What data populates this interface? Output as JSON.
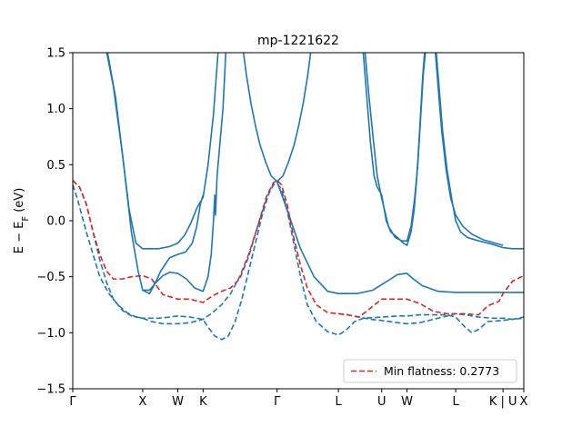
{
  "chart_data": {
    "type": "line",
    "title": "mp-1221622",
    "ylabel": "E − E_F (eV)",
    "ylim": [
      -1.5,
      1.5
    ],
    "yticks": [
      -1.5,
      -1.0,
      -0.5,
      0.0,
      0.5,
      1.0,
      1.5
    ],
    "ytick_labels": [
      "−1.5",
      "−1.0",
      "−0.5",
      "0.0",
      "0.5",
      "1.0",
      "1.5"
    ],
    "xlim": [
      0,
      1
    ],
    "kpoints": [
      {
        "label": "Γ",
        "x": 0.0
      },
      {
        "label": "X",
        "x": 0.155
      },
      {
        "label": "W",
        "x": 0.233
      },
      {
        "label": "K",
        "x": 0.289
      },
      {
        "label": "Γ",
        "x": 0.453
      },
      {
        "label": "L",
        "x": 0.589
      },
      {
        "label": "U",
        "x": 0.685
      },
      {
        "label": "W",
        "x": 0.741
      },
      {
        "label": "L",
        "x": 0.849
      },
      {
        "label": "K | U",
        "x": 0.954
      },
      {
        "label": "X",
        "x": 1.0
      }
    ],
    "legend": {
      "label": "Min flatness: 0.2773",
      "position": "lower right"
    },
    "colors": {
      "band": "#1f77b4",
      "flat": "#d62728"
    },
    "series": [
      {
        "style": "solid",
        "color": "#1f77b4",
        "points": [
          [
            0.073,
            1.55
          ],
          [
            0.09,
            1.2
          ],
          [
            0.11,
            0.6
          ],
          [
            0.125,
            0.1
          ],
          [
            0.14,
            -0.2
          ],
          [
            0.155,
            -0.25
          ],
          [
            0.19,
            -0.25
          ],
          [
            0.215,
            -0.23
          ],
          [
            0.233,
            -0.2
          ],
          [
            0.248,
            -0.13
          ],
          [
            0.262,
            -0.02
          ],
          [
            0.276,
            0.12
          ],
          [
            0.289,
            0.21
          ],
          [
            0.3,
            0.5
          ],
          [
            0.312,
            0.95
          ],
          [
            0.323,
            1.55
          ]
        ]
      },
      {
        "style": "solid",
        "color": "#1f77b4",
        "points": [
          [
            0.075,
            1.55
          ],
          [
            0.095,
            1.1
          ],
          [
            0.113,
            0.5
          ],
          [
            0.13,
            -0.1
          ],
          [
            0.145,
            -0.45
          ],
          [
            0.155,
            -0.62
          ],
          [
            0.17,
            -0.62
          ],
          [
            0.185,
            -0.55
          ],
          [
            0.2,
            -0.49
          ],
          [
            0.215,
            -0.46
          ],
          [
            0.233,
            -0.47
          ],
          [
            0.252,
            -0.52
          ],
          [
            0.27,
            -0.6
          ],
          [
            0.289,
            -0.63
          ],
          [
            0.3,
            -0.5
          ],
          [
            0.307,
            -0.3
          ],
          [
            0.312,
            0.0
          ],
          [
            0.315,
            0.23
          ],
          [
            0.3165,
            0.05
          ],
          [
            0.32,
            0.4
          ],
          [
            0.333,
            1.0
          ],
          [
            0.34,
            1.55
          ]
        ]
      },
      {
        "style": "solid",
        "color": "#1f77b4",
        "points": [
          [
            0.155,
            -0.62
          ],
          [
            0.17,
            -0.65
          ],
          [
            0.18,
            -0.58
          ],
          [
            0.195,
            -0.45
          ],
          [
            0.215,
            -0.33
          ],
          [
            0.233,
            -0.3
          ],
          [
            0.25,
            -0.28
          ],
          [
            0.265,
            -0.2
          ],
          [
            0.275,
            -0.05
          ],
          [
            0.283,
            0.15
          ],
          [
            0.289,
            0.23
          ]
        ]
      },
      {
        "style": "solid",
        "color": "#1f77b4",
        "points": [
          [
            0.377,
            1.55
          ],
          [
            0.385,
            1.3
          ],
          [
            0.395,
            1.05
          ],
          [
            0.405,
            0.85
          ],
          [
            0.415,
            0.68
          ],
          [
            0.428,
            0.52
          ],
          [
            0.44,
            0.4
          ],
          [
            0.453,
            0.35
          ],
          [
            0.466,
            0.4
          ],
          [
            0.478,
            0.52
          ],
          [
            0.491,
            0.68
          ],
          [
            0.501,
            0.85
          ],
          [
            0.511,
            1.05
          ],
          [
            0.521,
            1.3
          ],
          [
            0.529,
            1.55
          ]
        ]
      },
      {
        "style": "solid",
        "color": "#1f77b4",
        "points": [
          [
            0.453,
            0.35
          ],
          [
            0.475,
            0.1
          ],
          [
            0.505,
            -0.25
          ],
          [
            0.535,
            -0.5
          ],
          [
            0.565,
            -0.63
          ],
          [
            0.589,
            -0.65
          ],
          [
            0.63,
            -0.65
          ],
          [
            0.665,
            -0.62
          ],
          [
            0.685,
            -0.57
          ],
          [
            0.705,
            -0.52
          ],
          [
            0.72,
            -0.48
          ],
          [
            0.741,
            -0.47
          ],
          [
            0.755,
            -0.52
          ],
          [
            0.775,
            -0.58
          ],
          [
            0.81,
            -0.63
          ],
          [
            0.849,
            -0.64
          ],
          [
            0.9,
            -0.64
          ],
          [
            0.954,
            -0.64
          ],
          [
            1.0,
            -0.64
          ]
        ]
      },
      {
        "style": "solid",
        "color": "#1f77b4",
        "points": [
          [
            0.643,
            1.55
          ],
          [
            0.652,
            1.1
          ],
          [
            0.66,
            0.7
          ],
          [
            0.668,
            0.4
          ],
          [
            0.675,
            0.3
          ],
          [
            0.685,
            0.23
          ],
          [
            0.695,
            0.0
          ],
          [
            0.705,
            -0.1
          ],
          [
            0.72,
            -0.15
          ],
          [
            0.733,
            -0.2
          ],
          [
            0.741,
            -0.22
          ],
          [
            0.75,
            -0.1
          ],
          [
            0.757,
            0.1
          ],
          [
            0.763,
            0.4
          ],
          [
            0.769,
            0.8
          ],
          [
            0.776,
            1.3
          ],
          [
            0.781,
            1.55
          ]
        ]
      },
      {
        "style": "solid",
        "color": "#1f77b4",
        "points": [
          [
            0.647,
            1.55
          ],
          [
            0.657,
            1.1
          ],
          [
            0.667,
            0.7
          ],
          [
            0.675,
            0.4
          ],
          [
            0.685,
            0.2
          ],
          [
            0.7,
            -0.05
          ],
          [
            0.715,
            -0.15
          ],
          [
            0.73,
            -0.18
          ],
          [
            0.741,
            -0.18
          ],
          [
            0.75,
            -0.05
          ],
          [
            0.758,
            0.2
          ],
          [
            0.765,
            0.5
          ],
          [
            0.771,
            0.9
          ],
          [
            0.777,
            1.3
          ],
          [
            0.783,
            1.55
          ]
        ]
      },
      {
        "style": "solid",
        "color": "#1f77b4",
        "points": [
          [
            0.805,
            1.55
          ],
          [
            0.812,
            1.2
          ],
          [
            0.82,
            0.8
          ],
          [
            0.83,
            0.45
          ],
          [
            0.84,
            0.2
          ],
          [
            0.849,
            0.0
          ],
          [
            0.86,
            -0.1
          ],
          [
            0.875,
            -0.15
          ],
          [
            0.9,
            -0.18
          ],
          [
            0.93,
            -0.21
          ],
          [
            0.954,
            -0.24
          ],
          [
            0.975,
            -0.25
          ],
          [
            1.0,
            -0.25
          ]
        ]
      },
      {
        "style": "solid",
        "color": "#1f77b4",
        "points": [
          [
            0.803,
            1.55
          ],
          [
            0.81,
            1.2
          ],
          [
            0.818,
            0.8
          ],
          [
            0.828,
            0.45
          ],
          [
            0.838,
            0.2
          ],
          [
            0.849,
            0.05
          ],
          [
            0.865,
            -0.05
          ],
          [
            0.885,
            -0.12
          ],
          [
            0.91,
            -0.17
          ],
          [
            0.954,
            -0.22
          ]
        ]
      },
      {
        "style": "dashed",
        "color": "#1f77b4",
        "points": [
          [
            0.0,
            0.32
          ],
          [
            0.01,
            0.2
          ],
          [
            0.02,
            0.05
          ],
          [
            0.03,
            -0.1
          ],
          [
            0.045,
            -0.3
          ],
          [
            0.06,
            -0.5
          ],
          [
            0.08,
            -0.65
          ],
          [
            0.1,
            -0.75
          ],
          [
            0.12,
            -0.82
          ],
          [
            0.14,
            -0.86
          ],
          [
            0.155,
            -0.87
          ],
          [
            0.19,
            -0.87
          ],
          [
            0.215,
            -0.86
          ],
          [
            0.233,
            -0.85
          ],
          [
            0.26,
            -0.86
          ],
          [
            0.289,
            -0.88
          ],
          [
            0.3,
            -0.95
          ],
          [
            0.315,
            -1.03
          ],
          [
            0.33,
            -1.06
          ],
          [
            0.345,
            -1.03
          ],
          [
            0.36,
            -0.9
          ],
          [
            0.375,
            -0.7
          ],
          [
            0.39,
            -0.45
          ],
          [
            0.405,
            -0.2
          ],
          [
            0.42,
            0.05
          ],
          [
            0.435,
            0.25
          ],
          [
            0.445,
            0.32
          ],
          [
            0.453,
            0.33
          ],
          [
            0.463,
            0.28
          ],
          [
            0.475,
            0.1
          ],
          [
            0.49,
            -0.2
          ],
          [
            0.505,
            -0.5
          ],
          [
            0.52,
            -0.75
          ],
          [
            0.54,
            -0.9
          ],
          [
            0.565,
            -0.99
          ],
          [
            0.589,
            -1.02
          ],
          [
            0.605,
            -0.98
          ],
          [
            0.625,
            -0.9
          ],
          [
            0.645,
            -0.87
          ],
          [
            0.685,
            -0.86
          ],
          [
            0.72,
            -0.85
          ],
          [
            0.741,
            -0.85
          ],
          [
            0.77,
            -0.84
          ],
          [
            0.8,
            -0.84
          ],
          [
            0.83,
            -0.84
          ],
          [
            0.849,
            -0.86
          ],
          [
            0.87,
            -0.95
          ],
          [
            0.885,
            -1.0
          ],
          [
            0.9,
            -0.97
          ],
          [
            0.92,
            -0.9
          ],
          [
            0.954,
            -0.89
          ],
          [
            0.975,
            -0.88
          ],
          [
            1.0,
            -0.86
          ]
        ]
      },
      {
        "style": "dashed",
        "color": "#1f77b4",
        "points": [
          [
            0.0,
            0.36
          ],
          [
            0.015,
            0.3
          ],
          [
            0.03,
            0.15
          ],
          [
            0.045,
            -0.1
          ],
          [
            0.06,
            -0.35
          ],
          [
            0.075,
            -0.55
          ],
          [
            0.09,
            -0.7
          ],
          [
            0.11,
            -0.8
          ],
          [
            0.13,
            -0.85
          ],
          [
            0.155,
            -0.87
          ],
          [
            0.175,
            -0.9
          ],
          [
            0.2,
            -0.92
          ],
          [
            0.233,
            -0.92
          ],
          [
            0.26,
            -0.91
          ],
          [
            0.289,
            -0.88
          ],
          [
            0.31,
            -0.82
          ],
          [
            0.33,
            -0.75
          ],
          [
            0.35,
            -0.65
          ],
          [
            0.37,
            -0.5
          ],
          [
            0.39,
            -0.3
          ],
          [
            0.41,
            -0.05
          ],
          [
            0.43,
            0.2
          ],
          [
            0.445,
            0.33
          ],
          [
            0.453,
            0.35
          ]
        ]
      },
      {
        "style": "dashed",
        "color": "#1f77b4",
        "points": [
          [
            0.589,
            -0.83
          ],
          [
            0.61,
            -0.84
          ],
          [
            0.635,
            -0.86
          ],
          [
            0.66,
            -0.88
          ],
          [
            0.685,
            -0.89
          ],
          [
            0.72,
            -0.91
          ],
          [
            0.741,
            -0.92
          ],
          [
            0.77,
            -0.91
          ],
          [
            0.8,
            -0.88
          ],
          [
            0.83,
            -0.85
          ],
          [
            0.849,
            -0.83
          ],
          [
            0.87,
            -0.84
          ],
          [
            0.9,
            -0.86
          ],
          [
            0.93,
            -0.87
          ],
          [
            0.954,
            -0.87
          ],
          [
            0.975,
            -0.88
          ],
          [
            1.0,
            -0.87
          ]
        ]
      },
      {
        "style": "dashed",
        "color": "#d62728",
        "points": [
          [
            0.0,
            0.36
          ],
          [
            0.015,
            0.3
          ],
          [
            0.03,
            0.15
          ],
          [
            0.045,
            -0.1
          ],
          [
            0.06,
            -0.3
          ],
          [
            0.075,
            -0.45
          ],
          [
            0.09,
            -0.52
          ],
          [
            0.11,
            -0.52
          ],
          [
            0.13,
            -0.5
          ],
          [
            0.155,
            -0.49
          ],
          [
            0.175,
            -0.52
          ],
          [
            0.2,
            -0.66
          ],
          [
            0.233,
            -0.7
          ],
          [
            0.26,
            -0.7
          ],
          [
            0.289,
            -0.73
          ],
          [
            0.31,
            -0.67
          ],
          [
            0.33,
            -0.63
          ],
          [
            0.35,
            -0.6
          ],
          [
            0.37,
            -0.52
          ],
          [
            0.39,
            -0.32
          ],
          [
            0.41,
            -0.05
          ],
          [
            0.43,
            0.22
          ],
          [
            0.445,
            0.34
          ],
          [
            0.453,
            0.36
          ],
          [
            0.463,
            0.32
          ],
          [
            0.475,
            0.15
          ],
          [
            0.49,
            -0.15
          ],
          [
            0.505,
            -0.4
          ],
          [
            0.52,
            -0.6
          ],
          [
            0.54,
            -0.75
          ],
          [
            0.565,
            -0.82
          ],
          [
            0.589,
            -0.83
          ],
          [
            0.61,
            -0.84
          ],
          [
            0.635,
            -0.86
          ],
          [
            0.66,
            -0.78
          ],
          [
            0.685,
            -0.7
          ],
          [
            0.72,
            -0.7
          ],
          [
            0.741,
            -0.7
          ],
          [
            0.77,
            -0.74
          ],
          [
            0.8,
            -0.81
          ],
          [
            0.83,
            -0.83
          ],
          [
            0.849,
            -0.83
          ],
          [
            0.87,
            -0.83
          ],
          [
            0.9,
            -0.84
          ],
          [
            0.92,
            -0.76
          ],
          [
            0.945,
            -0.72
          ],
          [
            0.954,
            -0.65
          ],
          [
            0.975,
            -0.54
          ],
          [
            1.0,
            -0.49
          ]
        ]
      }
    ]
  }
}
